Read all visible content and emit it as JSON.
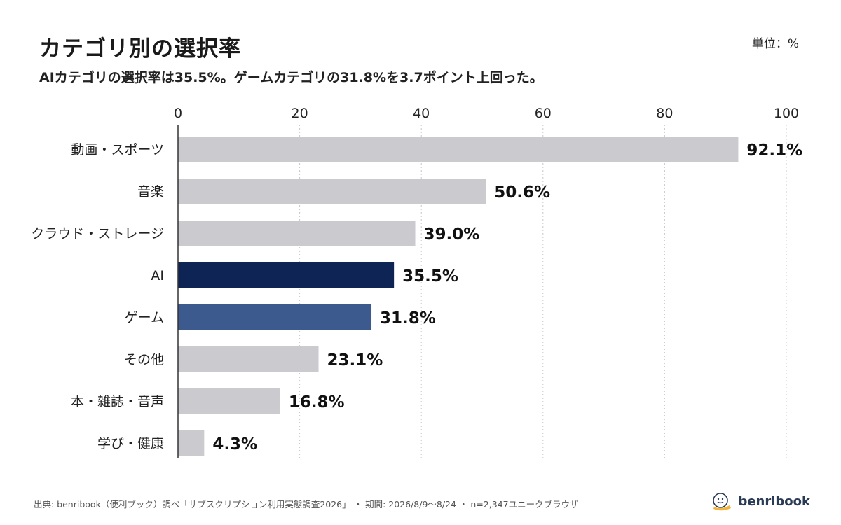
{
  "header": {
    "title": "カテゴリ別の選択率",
    "subtitle": "AIカテゴリの選択率は35.5%。ゲームカテゴリの31.8%を3.7ポイント上回った。",
    "unit": "単位：%"
  },
  "chart_data": {
    "type": "bar",
    "orientation": "horizontal",
    "categories": [
      "動画・スポーツ",
      "音楽",
      "クラウド・ストレージ",
      "AI",
      "ゲーム",
      "その他",
      "本・雑誌・音声",
      "学び・健康"
    ],
    "values": [
      92.1,
      50.6,
      39.0,
      35.5,
      31.8,
      23.1,
      16.8,
      4.3
    ],
    "value_labels": [
      "92.1%",
      "50.6%",
      "39.0%",
      "35.5%",
      "31.8%",
      "23.1%",
      "16.8%",
      "4.3%"
    ],
    "bar_colors": [
      "#cbcbcf",
      "#cbcbcf",
      "#cbcbcf",
      "#0d2454",
      "#3c5a8e",
      "#cbcbcf",
      "#cbcbcf",
      "#cbcbcf"
    ],
    "xlim": [
      0,
      100
    ],
    "x_ticks": [
      "0",
      "20",
      "40",
      "60",
      "80",
      "100"
    ],
    "grid": true,
    "axis_position": "top"
  },
  "footer": {
    "source": "出典: benribook（便利ブック）調べ「サブスクリプション利用実態調査2026」 ・ 期間: 2026/8/9〜8/24 ・ n=2,347ユニークブラウザ",
    "brand": "benribook"
  }
}
